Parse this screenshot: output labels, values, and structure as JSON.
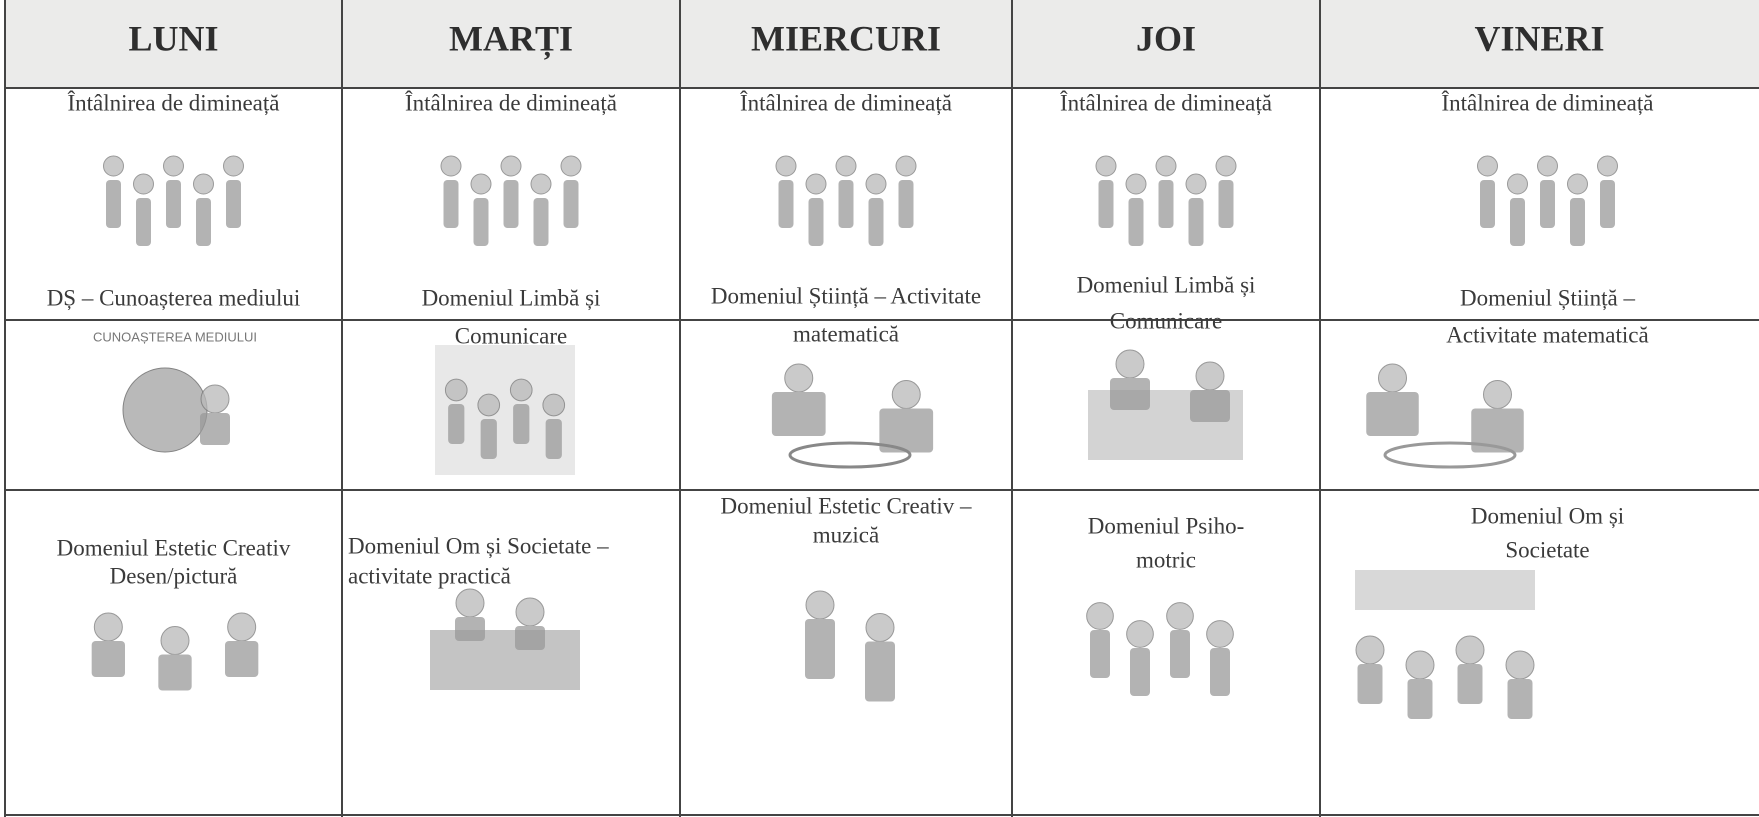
{
  "table": {
    "header": [
      "LUNI",
      "MARȚI",
      "MIERCURI",
      "JOI",
      "VINERI"
    ],
    "rows": [
      [
        [
          "Întâlnirea de dimineață"
        ],
        [
          "Întâlnirea de dimineață"
        ],
        [
          "Întâlnirea de dimineață"
        ],
        [
          "Întâlnirea de dimineață"
        ],
        [
          "Întâlnirea de dimineață"
        ]
      ],
      [
        [
          "DȘ – Cunoașterea mediului"
        ],
        [
          "Domeniul Limbă și",
          "Comunicare"
        ],
        [
          "Domeniul Știință – Activitate",
          "matematică"
        ],
        [
          "Domeniul Limbă și",
          "Comunicare"
        ],
        [
          "Domeniul Știință –",
          "Activitate matematică"
        ]
      ],
      [
        [
          "Domeniul Estetic Creativ",
          "Desen/pictură"
        ],
        [
          "Domeniul Om și Societate –",
          "activitate practică"
        ],
        [
          "Domeniul Estetic Creativ –",
          "muzică"
        ],
        [
          "Domeniul Psiho-",
          "motric"
        ],
        [
          "Domeniul Om și",
          "Societate"
        ]
      ]
    ]
  },
  "illustration_text": "CUNOAȘTEREA MEDIULUI"
}
